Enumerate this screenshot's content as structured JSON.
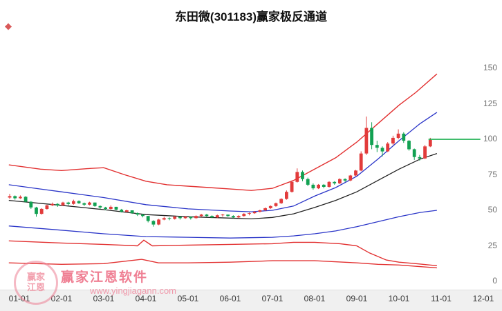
{
  "window": {
    "title": "东田微(301183)赢家极反通道"
  },
  "decorations": {
    "corner_mark": "◆"
  },
  "watermark": {
    "brand": "赢家江恩软件",
    "url": "www.yingjiagann.com",
    "logo_line1": "赢家",
    "logo_line2": "江恩"
  },
  "colors": {
    "up": "#e23b3b",
    "down": "#12a152",
    "background": "#ffffff",
    "axis_band": "#f0f0f0",
    "watermark": "#ec6980"
  },
  "chart_data": {
    "type": "candlestick",
    "title": "东田微(301183)赢家极反通道",
    "xlabel": "",
    "ylabel": "",
    "ylim": [
      0,
      175
    ],
    "grid": false,
    "legend": "none",
    "y_ticks": [
      0,
      25,
      50,
      75,
      100,
      125,
      150
    ],
    "x_ticks": [
      "01-01",
      "02-01",
      "03-01",
      "04-01",
      "05-01",
      "06-01",
      "07-01",
      "08-01",
      "09-01",
      "10-01",
      "11-01",
      "12-01"
    ],
    "candles": [
      [
        59,
        61.5,
        58,
        60
      ],
      [
        60,
        60.5,
        57.5,
        58.5
      ],
      [
        58.5,
        60.5,
        58,
        59.5
      ],
      [
        59.5,
        60,
        55.5,
        56
      ],
      [
        56,
        56.5,
        51,
        52
      ],
      [
        52,
        52.5,
        45.5,
        47.5
      ],
      [
        47.5,
        51.5,
        47,
        51
      ],
      [
        51,
        54,
        50.5,
        53.5
      ],
      [
        53.5,
        55.5,
        53,
        54.5
      ],
      [
        54.5,
        55,
        52.5,
        53.5
      ],
      [
        53.5,
        56,
        53,
        55.5
      ],
      [
        55.5,
        56,
        53.5,
        54.5
      ],
      [
        54.5,
        57.5,
        54,
        56.5
      ],
      [
        56.5,
        57,
        54.5,
        55
      ],
      [
        55,
        55.5,
        53,
        54
      ],
      [
        54,
        56,
        53.5,
        55.5
      ],
      [
        55.5,
        55.5,
        52.5,
        53
      ],
      [
        53,
        53.5,
        51,
        52
      ],
      [
        52,
        52.5,
        50,
        51
      ],
      [
        51,
        53.5,
        50.5,
        52.5
      ],
      [
        52.5,
        52.5,
        50,
        50.5
      ],
      [
        50.5,
        51,
        48.5,
        49
      ],
      [
        49,
        50.5,
        48.5,
        50
      ],
      [
        50,
        50,
        47.5,
        48
      ],
      [
        48,
        48.5,
        46,
        47
      ],
      [
        47,
        47.5,
        45,
        46
      ],
      [
        46,
        46,
        41.5,
        42.5
      ],
      [
        42.5,
        43,
        38.5,
        40
      ],
      [
        40,
        44,
        39.5,
        43.5
      ],
      [
        43.5,
        45.5,
        43,
        44.5
      ],
      [
        44.5,
        45,
        43,
        44
      ],
      [
        44,
        46,
        43.5,
        45.5
      ],
      [
        45.5,
        45.5,
        43.5,
        44.5
      ],
      [
        44.5,
        46,
        44,
        45.5
      ],
      [
        45.5,
        45.5,
        43.5,
        44.5
      ],
      [
        44.5,
        46.5,
        44,
        46
      ],
      [
        46,
        47.5,
        45.5,
        47
      ],
      [
        47,
        47.5,
        45.5,
        46
      ],
      [
        46,
        46.5,
        44.5,
        45
      ],
      [
        45,
        47,
        44.5,
        46.5
      ],
      [
        46.5,
        47.5,
        45.5,
        47
      ],
      [
        47,
        47,
        45.5,
        46
      ],
      [
        46,
        46.5,
        44.5,
        45
      ],
      [
        45,
        46.5,
        44.5,
        46
      ],
      [
        46,
        48,
        45.5,
        47.5
      ],
      [
        47.5,
        48.5,
        46.5,
        48
      ],
      [
        48,
        49.5,
        47.5,
        49
      ],
      [
        49,
        50.5,
        48.5,
        50
      ],
      [
        50,
        52,
        49.5,
        51.5
      ],
      [
        51.5,
        53.5,
        51,
        53
      ],
      [
        53,
        55.5,
        52.5,
        55
      ],
      [
        55,
        58.5,
        54.5,
        58
      ],
      [
        58,
        64,
        57.5,
        63
      ],
      [
        63,
        71,
        62.5,
        70
      ],
      [
        70,
        79.5,
        69.5,
        77
      ],
      [
        77,
        78,
        70.5,
        72
      ],
      [
        72,
        73,
        67,
        68
      ],
      [
        68,
        69,
        64.5,
        65.5
      ],
      [
        65.5,
        68.5,
        65,
        68
      ],
      [
        68,
        68.5,
        65.5,
        66.5
      ],
      [
        66.5,
        70.5,
        66,
        70
      ],
      [
        70,
        70.5,
        68,
        69
      ],
      [
        69,
        72.5,
        68.5,
        72
      ],
      [
        72,
        72.5,
        70,
        71
      ],
      [
        71,
        75,
        70.5,
        74.5
      ],
      [
        74.5,
        78.5,
        74,
        78
      ],
      [
        78,
        91.5,
        77.5,
        90
      ],
      [
        90,
        116,
        89,
        108
      ],
      [
        108,
        112,
        93,
        96
      ],
      [
        96,
        99,
        91,
        94
      ],
      [
        94,
        95,
        88,
        91.5
      ],
      [
        91.5,
        98,
        91,
        97
      ],
      [
        97,
        102.5,
        96,
        101
      ],
      [
        101,
        107,
        100,
        104
      ],
      [
        104,
        105,
        97.5,
        99
      ],
      [
        99,
        99.5,
        92,
        93
      ],
      [
        93,
        93.5,
        85.5,
        87.5
      ],
      [
        87.5,
        89,
        85,
        86.5
      ],
      [
        86.5,
        96,
        86,
        95
      ],
      [
        95,
        101,
        94.5,
        99.5
      ]
    ],
    "lines": [
      {
        "name": "upper-channel-red",
        "color": "#e23030",
        "width": 1.4,
        "points": [
          [
            -0.25,
            82
          ],
          [
            0.5,
            79
          ],
          [
            1,
            78
          ],
          [
            1.7,
            79.5
          ],
          [
            2,
            80
          ],
          [
            2.5,
            75
          ],
          [
            3,
            70.5
          ],
          [
            3.5,
            68
          ],
          [
            4,
            67
          ],
          [
            4.5,
            66
          ],
          [
            5,
            65
          ],
          [
            5.5,
            64
          ],
          [
            6,
            65.5
          ],
          [
            6.5,
            71
          ],
          [
            7,
            79
          ],
          [
            7.5,
            87
          ],
          [
            8,
            98
          ],
          [
            8.5,
            111
          ],
          [
            9,
            124
          ],
          [
            9.4,
            133
          ],
          [
            9.9,
            146
          ]
        ]
      },
      {
        "name": "upper-channel-blue",
        "color": "#2a35c8",
        "width": 1.3,
        "points": [
          [
            -0.25,
            68
          ],
          [
            0.5,
            65
          ],
          [
            1,
            63
          ],
          [
            2,
            59
          ],
          [
            3,
            54
          ],
          [
            4,
            51
          ],
          [
            5,
            49.5
          ],
          [
            5.5,
            49
          ],
          [
            6,
            50
          ],
          [
            6.5,
            53
          ],
          [
            7,
            60
          ],
          [
            7.5,
            66
          ],
          [
            8,
            74
          ],
          [
            8.5,
            86
          ],
          [
            9,
            99
          ],
          [
            9.5,
            111
          ],
          [
            9.9,
            119
          ]
        ]
      },
      {
        "name": "middle-line-black",
        "color": "#222222",
        "width": 1.3,
        "points": [
          [
            -0.25,
            57
          ],
          [
            1,
            53.5
          ],
          [
            2,
            50.5
          ],
          [
            3,
            47
          ],
          [
            4,
            45.5
          ],
          [
            5,
            44.5
          ],
          [
            5.5,
            44
          ],
          [
            6,
            45
          ],
          [
            6.5,
            47.5
          ],
          [
            7,
            52
          ],
          [
            7.5,
            57
          ],
          [
            8,
            63
          ],
          [
            8.5,
            71
          ],
          [
            9,
            79
          ],
          [
            9.5,
            86
          ],
          [
            9.9,
            90
          ]
        ]
      },
      {
        "name": "lower-channel-blue",
        "color": "#2a35c8",
        "width": 1.3,
        "points": [
          [
            -0.25,
            39
          ],
          [
            1,
            36
          ],
          [
            2,
            33.5
          ],
          [
            3,
            31.5
          ],
          [
            4,
            31
          ],
          [
            5,
            30.5
          ],
          [
            6,
            31
          ],
          [
            6.5,
            32
          ],
          [
            7,
            33.5
          ],
          [
            7.5,
            35.5
          ],
          [
            8,
            38.5
          ],
          [
            8.5,
            42
          ],
          [
            9,
            45.5
          ],
          [
            9.5,
            48.5
          ],
          [
            9.9,
            50
          ]
        ]
      },
      {
        "name": "lower-channel-red",
        "color": "#e23030",
        "width": 1.4,
        "points": [
          [
            -0.25,
            28.5
          ],
          [
            1,
            27
          ],
          [
            2,
            26
          ],
          [
            2.8,
            25
          ],
          [
            2.95,
            29
          ],
          [
            3.15,
            25
          ],
          [
            4,
            25.5
          ],
          [
            5,
            26
          ],
          [
            6,
            26.5
          ],
          [
            6.5,
            27.5
          ],
          [
            7,
            27.5
          ],
          [
            7.6,
            26.5
          ],
          [
            8,
            25
          ],
          [
            8.3,
            20
          ],
          [
            8.7,
            15
          ],
          [
            9,
            13.5
          ],
          [
            9.4,
            12.5
          ],
          [
            9.9,
            11
          ]
        ]
      },
      {
        "name": "outer-channel-red",
        "color": "#e23030",
        "width": 1.4,
        "points": [
          [
            -0.25,
            13
          ],
          [
            1,
            12
          ],
          [
            2,
            12.5
          ],
          [
            2.9,
            15.5
          ],
          [
            3.3,
            13
          ],
          [
            4,
            13
          ],
          [
            5,
            13.5
          ],
          [
            6,
            14.5
          ],
          [
            7,
            14.5
          ],
          [
            8,
            13
          ],
          [
            8.5,
            12
          ],
          [
            9,
            11.5
          ],
          [
            9.9,
            9.5
          ]
        ]
      }
    ],
    "hline": {
      "name": "current-price-extension",
      "color": "#00a63c",
      "price": 100,
      "t_start": 9.7,
      "t_end": 10.93
    }
  }
}
